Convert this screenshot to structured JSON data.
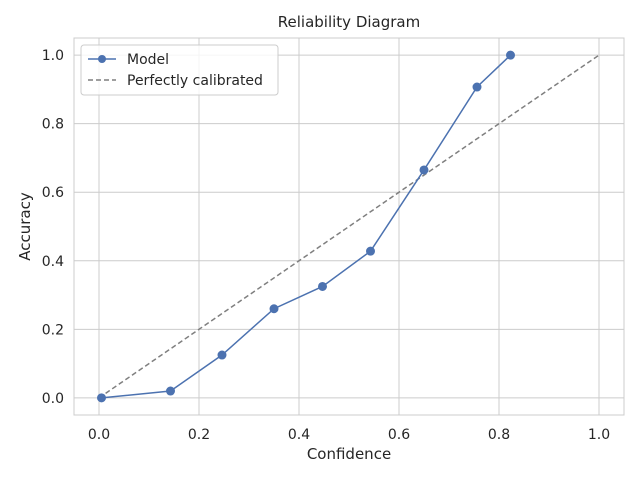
{
  "chart_data": {
    "type": "line",
    "title": "Reliability Diagram",
    "xlabel": "Confidence",
    "ylabel": "Accuracy",
    "xlim": [
      -0.05,
      1.05
    ],
    "ylim": [
      -0.05,
      1.05
    ],
    "xticks": [
      0.0,
      0.2,
      0.4,
      0.6,
      0.8,
      1.0
    ],
    "yticks": [
      0.0,
      0.2,
      0.4,
      0.6,
      0.8,
      1.0
    ],
    "xtick_labels": [
      "0.0",
      "0.2",
      "0.4",
      "0.6",
      "0.8",
      "1.0"
    ],
    "ytick_labels": [
      "0.0",
      "0.2",
      "0.4",
      "0.6",
      "0.8",
      "1.0"
    ],
    "grid": true,
    "legend_position": "top-left",
    "series": [
      {
        "name": "Model",
        "style": "solid-line-with-markers",
        "color": "#4c72b0",
        "x": [
          0.005,
          0.143,
          0.246,
          0.35,
          0.447,
          0.543,
          0.65,
          0.756,
          0.823
        ],
        "y": [
          0.0,
          0.02,
          0.125,
          0.26,
          0.325,
          0.428,
          0.665,
          0.907,
          1.0
        ]
      },
      {
        "name": "Perfectly calibrated",
        "style": "dashed",
        "color": "#7f7f7f",
        "x": [
          0.0,
          1.0
        ],
        "y": [
          0.0,
          1.0
        ]
      }
    ]
  }
}
